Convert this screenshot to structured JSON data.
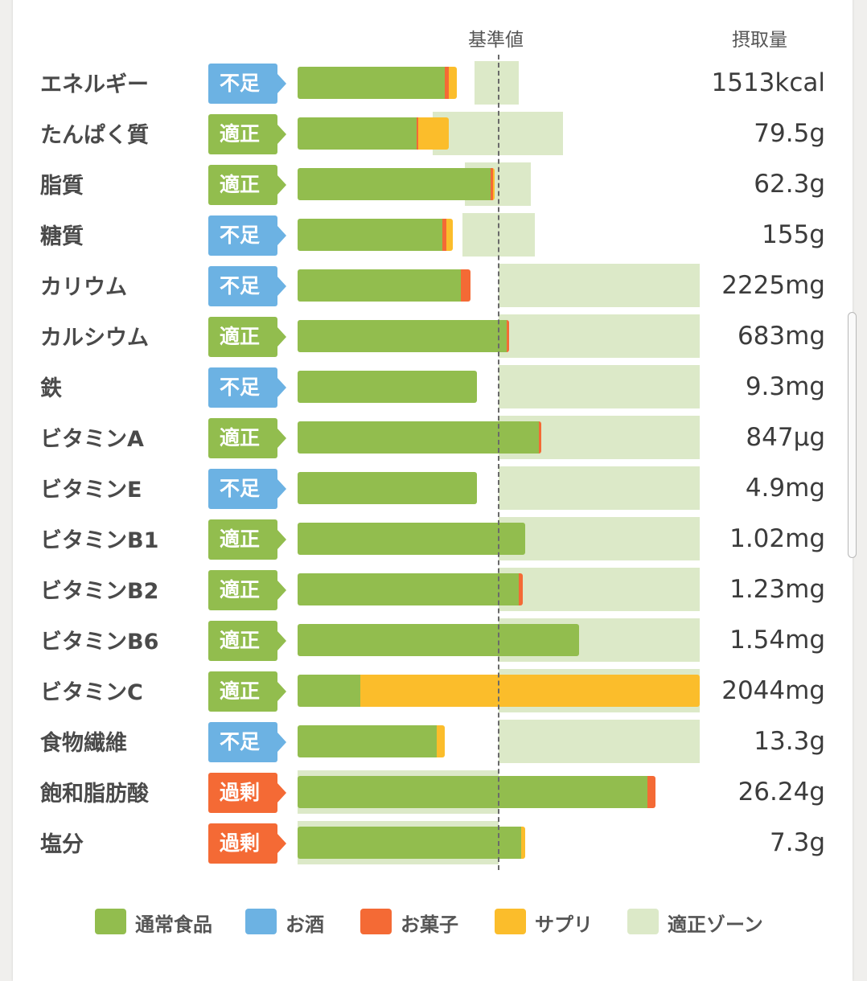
{
  "chart_data": {
    "type": "bar",
    "orientation": "horizontal",
    "stacked": true,
    "header_reference": "基準値",
    "header_intake": "摂取量",
    "series": [
      {
        "name": "通常食品",
        "color": "#92bd4e"
      },
      {
        "name": "お酒",
        "color": "#6cb2e3"
      },
      {
        "name": "お菓子",
        "color": "#f46a35"
      },
      {
        "name": "サプリ",
        "color": "#fbbd2b"
      },
      {
        "name": "適正ゾーン",
        "color": "#dce9c8"
      }
    ],
    "scale_note": "values are percent of the reference value (基準値 = 100)",
    "rows": [
      {
        "name": "エネルギー",
        "status": "不足",
        "status_color": "#6cb2e3",
        "intake": "1513kcal",
        "segments": [
          73,
          0,
          2,
          4
        ],
        "zone": [
          88,
          110
        ]
      },
      {
        "name": "たんぱく質",
        "status": "適正",
        "status_color": "#92bd4e",
        "intake": "79.5g",
        "segments": [
          59,
          0,
          1,
          15
        ],
        "zone": [
          67,
          132
        ]
      },
      {
        "name": "脂質",
        "status": "適正",
        "status_color": "#92bd4e",
        "intake": "62.3g",
        "segments": [
          96,
          0,
          1,
          1
        ],
        "zone": [
          83,
          116
        ]
      },
      {
        "name": "糖質",
        "status": "不足",
        "status_color": "#6cb2e3",
        "intake": "155g",
        "segments": [
          72,
          0,
          2,
          3
        ],
        "zone": [
          82,
          118
        ]
      },
      {
        "name": "カリウム",
        "status": "不足",
        "status_color": "#6cb2e3",
        "intake": "2225mg",
        "segments": [
          81,
          0,
          5,
          0
        ],
        "zone": [
          100,
          200
        ]
      },
      {
        "name": "カルシウム",
        "status": "適正",
        "status_color": "#92bd4e",
        "intake": "683mg",
        "segments": [
          104,
          0,
          1,
          0
        ],
        "zone": [
          100,
          200
        ]
      },
      {
        "name": "鉄",
        "status": "不足",
        "status_color": "#6cb2e3",
        "intake": "9.3mg",
        "segments": [
          89,
          0,
          0,
          0
        ],
        "zone": [
          100,
          200
        ]
      },
      {
        "name": "ビタミンA",
        "status": "適正",
        "status_color": "#92bd4e",
        "intake": "847μg",
        "segments": [
          120,
          0,
          1,
          0
        ],
        "zone": [
          100,
          200
        ]
      },
      {
        "name": "ビタミンE",
        "status": "不足",
        "status_color": "#6cb2e3",
        "intake": "4.9mg",
        "segments": [
          89,
          0,
          0,
          0
        ],
        "zone": [
          100,
          200
        ]
      },
      {
        "name": "ビタミンB1",
        "status": "適正",
        "status_color": "#92bd4e",
        "intake": "1.02mg",
        "segments": [
          113,
          0,
          0,
          0
        ],
        "zone": [
          100,
          200
        ]
      },
      {
        "name": "ビタミンB2",
        "status": "適正",
        "status_color": "#92bd4e",
        "intake": "1.23mg",
        "segments": [
          110,
          0,
          2,
          0
        ],
        "zone": [
          100,
          200
        ]
      },
      {
        "name": "ビタミンB6",
        "status": "適正",
        "status_color": "#92bd4e",
        "intake": "1.54mg",
        "segments": [
          140,
          0,
          0,
          0
        ],
        "zone": [
          100,
          200
        ]
      },
      {
        "name": "ビタミンC",
        "status": "適正",
        "status_color": "#92bd4e",
        "intake": "2044mg",
        "segments": [
          31,
          0,
          0,
          169
        ],
        "zone": [
          100,
          200
        ]
      },
      {
        "name": "食物繊維",
        "status": "不足",
        "status_color": "#6cb2e3",
        "intake": "13.3g",
        "segments": [
          69,
          0,
          0,
          4
        ],
        "zone": [
          100,
          200
        ]
      },
      {
        "name": "飽和脂肪酸",
        "status": "過剰",
        "status_color": "#f46a35",
        "intake": "26.24g",
        "segments": [
          174,
          0,
          4,
          0
        ],
        "zone": [
          0,
          100
        ]
      },
      {
        "name": "塩分",
        "status": "過剰",
        "status_color": "#f46a35",
        "intake": "7.3g",
        "segments": [
          111,
          0,
          0,
          2
        ],
        "zone": [
          0,
          100
        ]
      }
    ]
  }
}
